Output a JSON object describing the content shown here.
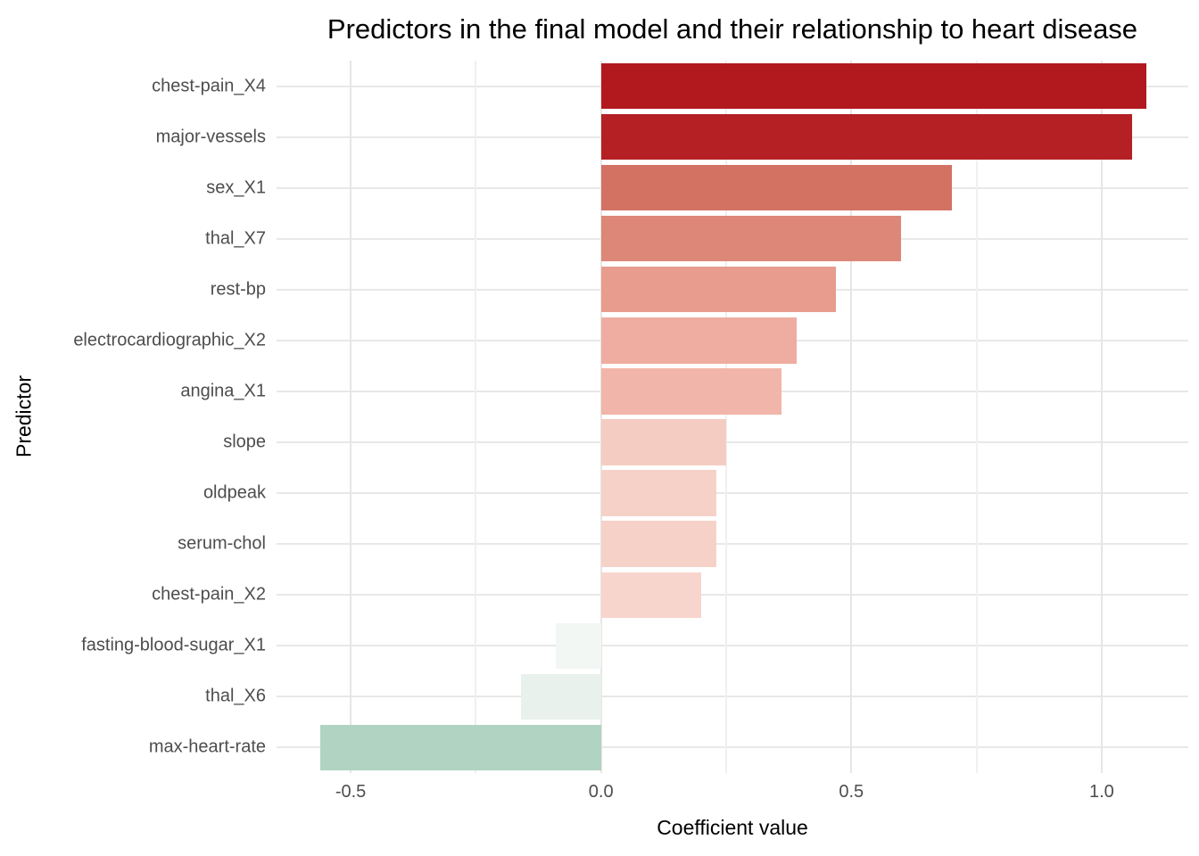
{
  "chart_data": {
    "type": "bar",
    "orientation": "horizontal",
    "title": "Predictors in the final model and their relationship to heart disease",
    "xlabel": "Coefficient value",
    "ylabel": "Predictor",
    "xlim": [
      -0.648,
      1.173
    ],
    "grid": true,
    "legend": false,
    "x_major_ticks": [
      -0.5,
      0.0,
      0.5,
      1.0
    ],
    "x_tick_labels": [
      "-0.5",
      "0.0",
      "0.5",
      "1.0"
    ],
    "x_minor_ticks": [
      -0.25,
      0.25,
      0.75
    ],
    "categories": [
      "chest-pain_X4",
      "major-vessels",
      "sex_X1",
      "thal_X7",
      "rest-bp",
      "electrocardiographic_X2",
      "angina_X1",
      "slope",
      "oldpeak",
      "serum-chol",
      "chest-pain_X2",
      "fasting-blood-sugar_X1",
      "thal_X6",
      "max-heart-rate"
    ],
    "values": [
      1.09,
      1.06,
      0.7,
      0.6,
      0.47,
      0.39,
      0.36,
      0.25,
      0.23,
      0.23,
      0.2,
      -0.09,
      -0.16,
      -0.56
    ],
    "bar_colors": [
      "#b2191f",
      "#b42024",
      "#d37262",
      "#dc8777",
      "#e89c8e",
      "#eeada0",
      "#f1b5a9",
      "#f5ccc2",
      "#f6d1c8",
      "#f6d1c8",
      "#f7d5cd",
      "#f2f7f3",
      "#e8f1ec",
      "#b1d3c2"
    ]
  },
  "colors": {
    "background": "#ffffff",
    "grid_major": "#e6e6e6",
    "grid_minor": "#f0f0f0",
    "axis_text": "#4d4d4d",
    "title_text": "#000000"
  }
}
